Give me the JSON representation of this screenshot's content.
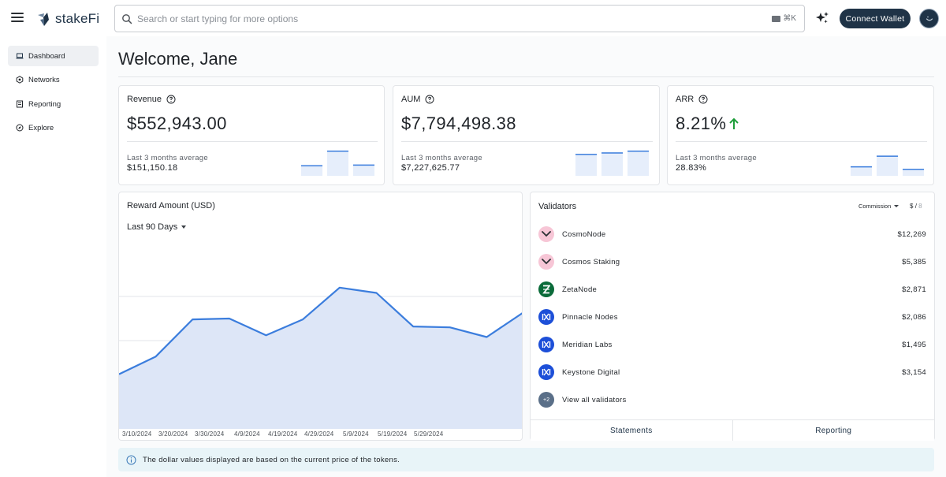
{
  "app": {
    "name": "stakeFi",
    "brand_color": "#1f3347",
    "accent_line_color": "#3b7ddd",
    "accent_fill_color": "#dde6f7"
  },
  "topbar": {
    "search_placeholder": "Search or start typing for more options",
    "shortcut": "⌘K",
    "connect_wallet_label": "Connect Wallet",
    "icons": [
      "hamburger-icon",
      "search-icon",
      "keyboard-icon",
      "sparkle-icon",
      "avatar"
    ]
  },
  "sidebar": {
    "items": [
      {
        "label": "Dashboard",
        "icon": "laptop-icon",
        "active": true
      },
      {
        "label": "Networks",
        "icon": "network-icon",
        "active": false
      },
      {
        "label": "Reporting",
        "icon": "report-icon",
        "active": false
      },
      {
        "label": "Explore",
        "icon": "compass-icon",
        "active": false
      }
    ]
  },
  "welcome": "Welcome, Jane",
  "stats": [
    {
      "title": "Revenue",
      "value": "$552,943.00",
      "sub_label": "Last 3 months average",
      "sub_value": "$151,150.18",
      "trend": "",
      "bars": [
        0.42,
        1.0,
        0.45
      ]
    },
    {
      "title": "AUM",
      "value": "$7,794,498.38",
      "sub_label": "Last 3 months average",
      "sub_value": "$7,227,625.77",
      "trend": "",
      "bars": [
        0.87,
        0.93,
        1.0
      ]
    },
    {
      "title": "ARR",
      "value": "8.21%",
      "sub_label": "Last 3 months average",
      "sub_value": "28.83%",
      "trend": "up",
      "bars": [
        0.38,
        0.8,
        0.28
      ]
    }
  ],
  "reward": {
    "title": "Reward Amount (USD)",
    "range": "Last 90 Days"
  },
  "chart_data": {
    "type": "area",
    "title": "Reward Amount (USD)",
    "x_tick_labels": [
      "3/10/2024",
      "3/20/2024",
      "3/30/2024",
      "4/9/2024",
      "4/19/2024",
      "4/29/2024",
      "5/9/2024",
      "5/19/2024",
      "5/29/2024"
    ],
    "values": [
      0.31,
      0.41,
      0.62,
      0.625,
      0.53,
      0.62,
      0.8,
      0.77,
      0.58,
      0.575,
      0.52,
      0.66
    ],
    "ylim": [
      0,
      1
    ],
    "grid": "horizontal",
    "axis_labels_shown": false
  },
  "validators": {
    "title": "Validators",
    "sort_label": "Commission",
    "unit_active": "$",
    "unit_separator": "/",
    "unit_inactive": "8",
    "rows": [
      {
        "name": "CosmoNode",
        "amount": "$12,269",
        "logo": "cosmo-logo-icon"
      },
      {
        "name": "Cosmos Staking",
        "amount": "$5,385",
        "logo": "cosmo-logo-icon"
      },
      {
        "name": "ZetaNode",
        "amount": "$2,871",
        "logo": "zeta-logo-icon"
      },
      {
        "name": "Pinnacle Nodes",
        "amount": "$2,086",
        "logo": "node-logo-icon"
      },
      {
        "name": "Meridian Labs",
        "amount": "$1,495",
        "logo": "node-logo-icon"
      },
      {
        "name": "Keystone Digital",
        "amount": "$3,154",
        "logo": "node-logo-icon"
      }
    ],
    "more_badge": "+2",
    "view_all_label": "View all validators",
    "footer_statements": "Statements",
    "footer_reporting": "Reporting"
  },
  "info_banner": "The dollar values displayed are based on the current price of the tokens."
}
